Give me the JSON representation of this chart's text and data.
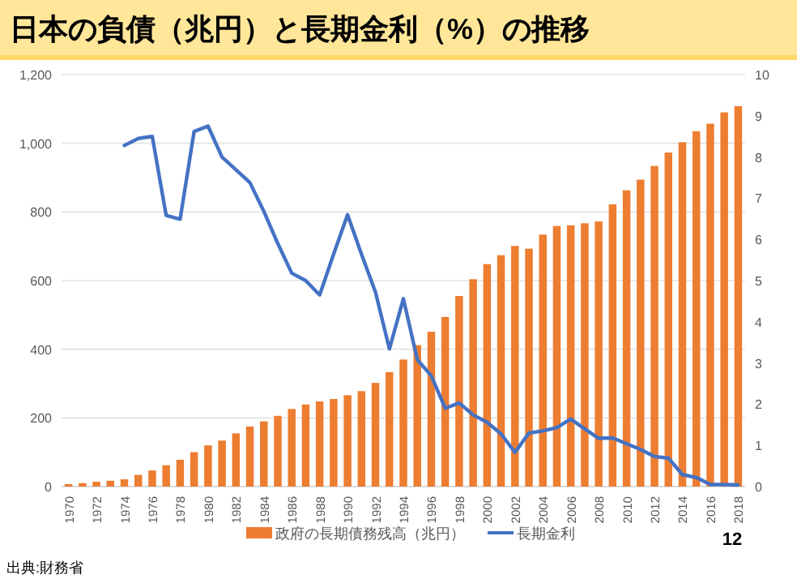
{
  "chart_data": {
    "type": "bar",
    "title": "日本の負債（兆円）と長期金利（%）の推移",
    "categories": [
      "1970",
      null,
      "1972",
      null,
      "1974",
      null,
      "1976",
      null,
      "1978",
      null,
      "1980",
      null,
      "1982",
      null,
      "1984",
      null,
      "1986",
      null,
      "1988",
      null,
      "1990",
      null,
      "1992",
      null,
      "1994",
      null,
      "1996",
      null,
      "1998",
      null,
      "2000",
      null,
      "2002",
      null,
      "2004",
      null,
      "2006",
      null,
      "2008",
      null,
      "2010",
      null,
      "2012",
      null,
      "2014",
      null,
      "2016",
      null,
      "2018"
    ],
    "series": [
      {
        "name": "政府の長期債務残高（兆円）",
        "color": "#ed7d31",
        "values": [
          7,
          10,
          14,
          17,
          21,
          34,
          47,
          62,
          78,
          100,
          120,
          134,
          155,
          175,
          190,
          206,
          226,
          239,
          248,
          255,
          266,
          278,
          302,
          333,
          370,
          412,
          451,
          494,
          555,
          604,
          648,
          674,
          701,
          693,
          734,
          759,
          761,
          767,
          772,
          822,
          863,
          894,
          934,
          973,
          1003,
          1035,
          1057,
          1090,
          1108
        ]
      },
      {
        "name": "長期金利",
        "type": "line",
        "axis": "y2",
        "color": "#4472c4",
        "values": [
          null,
          null,
          null,
          null,
          8.28,
          8.45,
          8.5,
          6.58,
          6.49,
          8.62,
          8.75,
          8.0,
          7.69,
          7.38,
          6.68,
          5.9,
          5.18,
          5.0,
          4.65,
          5.64,
          6.6,
          5.64,
          4.72,
          3.34,
          4.56,
          3.08,
          2.69,
          1.9,
          2.03,
          1.74,
          1.56,
          1.28,
          0.83,
          1.3,
          1.35,
          1.43,
          1.64,
          1.4,
          1.17,
          1.18,
          1.04,
          0.9,
          0.73,
          0.69,
          0.29,
          0.22,
          0.05,
          0.05,
          0.04
        ]
      }
    ],
    "ylim": [
      0,
      1200
    ],
    "yticks": [
      0,
      200,
      400,
      600,
      800,
      {
        "value": 1000,
        "label": "1,000"
      },
      {
        "value": 1200,
        "label": "1,200"
      }
    ],
    "y2lim": [
      0,
      10
    ],
    "y2ticks": [
      0,
      1,
      2,
      3,
      4,
      5,
      6,
      7,
      8,
      9,
      10
    ],
    "grid": "y",
    "legend": "bottom",
    "marker": "none",
    "line_style": "solid",
    "annotations": [
      "12",
      "出典:財務省"
    ]
  }
}
